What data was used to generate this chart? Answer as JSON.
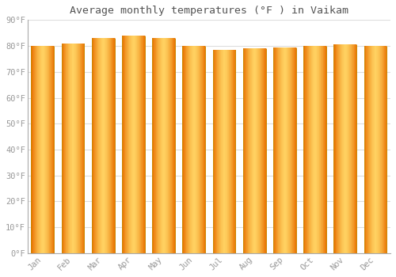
{
  "title": "Average monthly temperatures (°F ) in Vaikam",
  "months": [
    "Jan",
    "Feb",
    "Mar",
    "Apr",
    "May",
    "Jun",
    "Jul",
    "Aug",
    "Sep",
    "Oct",
    "Nov",
    "Dec"
  ],
  "values": [
    80,
    81,
    83,
    84,
    83,
    80,
    78.5,
    79,
    79.5,
    80,
    80.5,
    80
  ],
  "background_color": "#FFFFFF",
  "grid_color": "#DDDDDD",
  "ylim": [
    0,
    90
  ],
  "yticks": [
    0,
    10,
    20,
    30,
    40,
    50,
    60,
    70,
    80,
    90
  ],
  "ytick_labels": [
    "0°F",
    "10°F",
    "20°F",
    "30°F",
    "40°F",
    "50°F",
    "60°F",
    "70°F",
    "80°F",
    "90°F"
  ],
  "font_color": "#999999",
  "title_font_color": "#555555",
  "bar_width": 0.75,
  "bar_edge_color": "#CC8800",
  "bar_color_center": "#FFD060",
  "bar_color_edge": "#E87000",
  "n_grad": 80
}
